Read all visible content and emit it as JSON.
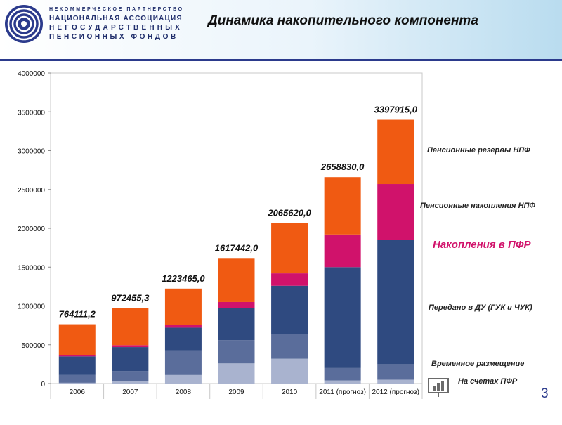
{
  "header": {
    "org_lines": [
      "НЕКОММЕРЧЕСКОЕ ПАРТНЕРСТВО",
      "НАЦИОНАЛЬНАЯ АССОЦИАЦИЯ",
      "НЕГОСУДАРСТВЕННЫХ",
      "ПЕНСИОННЫХ ФОНДОВ"
    ],
    "title": "Динамика накопительного компонента"
  },
  "page_number": "3",
  "colors": {
    "pfr_temporary": "#a9b3cf",
    "pfr_accounts": "#5a6d9b",
    "transferred_du": "#2f4a80",
    "pfr_savings": "#d0126b",
    "npf_savings": "#f05a12",
    "npf_reserves": "#f05a12",
    "header_navy": "#2b3a8c"
  },
  "chart_data": {
    "type": "bar",
    "stacked": true,
    "categories": [
      "2006",
      "2007",
      "2008",
      "2009",
      "2010",
      "2011 (прогноз)",
      "2012 (прогноз)"
    ],
    "ylim": [
      0,
      4000000
    ],
    "yticks": [
      0,
      500000,
      1000000,
      1500000,
      2000000,
      2500000,
      3000000,
      3500000,
      4000000
    ],
    "totals_labels": [
      "764111,2",
      "972455,3",
      "1223465,0",
      "1617442,0",
      "2065620,0",
      "2658830,0",
      "3397915,0"
    ],
    "totals": [
      764111.2,
      972455.3,
      1223465.0,
      1617442.0,
      2065620.0,
      2658830.0,
      3397915.0
    ],
    "series": [
      {
        "name": "Временное размещение",
        "values": [
          10000,
          30000,
          110000,
          260000,
          320000,
          40000,
          50000
        ]
      },
      {
        "name": "На счетах ПФР",
        "values": [
          100000,
          130000,
          320000,
          300000,
          320000,
          160000,
          200000
        ]
      },
      {
        "name": "Передано в ДУ (ГУК и ЧУК)",
        "values": [
          240000,
          310000,
          290000,
          410000,
          620000,
          1300000,
          1600000
        ]
      },
      {
        "name": "Накопления в ПФР",
        "values": [
          15000,
          25000,
          40000,
          80000,
          160000,
          420000,
          720000
        ]
      },
      {
        "name": "Пенсионные накопления НПФ + Пенсионные резервы НПФ",
        "values": [
          399111.2,
          477455.3,
          463465.0,
          567442.0,
          645620.0,
          738830.0,
          827915.0
        ]
      }
    ],
    "legend": [
      {
        "label": "Пенсионные резервы НПФ",
        "emphasis": false
      },
      {
        "label": "Пенсионные накопления НПФ",
        "emphasis": false
      },
      {
        "label": "Накопления в ПФР",
        "emphasis": true
      },
      {
        "label": "Передано в ДУ (ГУК и ЧУК)",
        "emphasis": false
      },
      {
        "label": "Временное размещение",
        "emphasis": false
      },
      {
        "label": "На счетах ПФР",
        "emphasis": false
      }
    ],
    "legend_placement": "right",
    "grid": false
  }
}
